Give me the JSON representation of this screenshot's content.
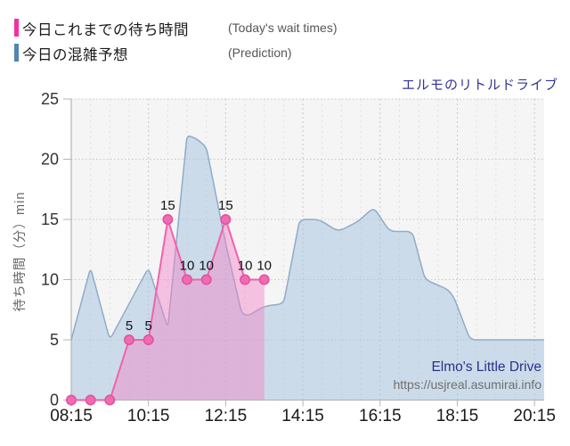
{
  "legend": {
    "items": [
      {
        "jp": "今日これまでの待ち時間",
        "en": "(Today's wait times)",
        "color": "#f5309d"
      },
      {
        "jp": "今日の混雑予想",
        "en": "(Prediction)",
        "color": "#4e86b5"
      }
    ]
  },
  "chart_title": "エルモのリトルドライブ",
  "footer": {
    "attraction_en": "Elmo's Little Drive",
    "url": "https://usjreal.asumirai.info"
  },
  "colors": {
    "title_navy": "#323397",
    "footer_navy": "#2c3188",
    "footer_gray": "#6f6f6f",
    "plot_bg": "#f5f5f6",
    "grid_major": "#c8c8c8",
    "grid_minor": "#dedede",
    "axis": "#b5b5b5",
    "tick_label": "#333333",
    "x_tick_label": "#191919",
    "point_label": "#111111"
  },
  "chart_data": {
    "type": "area",
    "title": "エルモのリトルドライブ",
    "xlabel": "",
    "ylabel": "待ち時間（分）min",
    "ylim": [
      0,
      25
    ],
    "y_ticks": [
      0,
      5,
      10,
      15,
      20,
      25
    ],
    "x_ticks": [
      "08:15",
      "10:15",
      "12:15",
      "14:15",
      "16:15",
      "18:15",
      "20:15"
    ],
    "x_domain": [
      "08:15",
      "20:30"
    ],
    "grid": "dotted",
    "legend_position": "top-left-outside",
    "series": [
      {
        "name": "今日の混雑予想",
        "name_en": "Prediction",
        "style": "area",
        "line_color": "#8fabc7",
        "fill_color": "rgba(164,193,219,0.50)",
        "show_labels": false,
        "points": [
          [
            "08:15",
            5
          ],
          [
            "08:45",
            11
          ],
          [
            "09:15",
            5
          ],
          [
            "09:45",
            8
          ],
          [
            "10:15",
            11
          ],
          [
            "10:45",
            6
          ],
          [
            "11:15",
            22
          ],
          [
            "11:30",
            21.7
          ],
          [
            "11:45",
            21
          ],
          [
            "12:15",
            13
          ],
          [
            "12:40",
            7.2
          ],
          [
            "12:50",
            7
          ],
          [
            "13:15",
            7.8
          ],
          [
            "13:45",
            8
          ],
          [
            "14:10",
            15
          ],
          [
            "14:40",
            15
          ],
          [
            "15:10",
            14
          ],
          [
            "15:40",
            14.8
          ],
          [
            "16:05",
            16
          ],
          [
            "16:30",
            14
          ],
          [
            "17:05",
            14
          ],
          [
            "17:25",
            10
          ],
          [
            "18:00",
            9.2
          ],
          [
            "18:10",
            8.5
          ],
          [
            "18:35",
            5
          ],
          [
            "20:30",
            5
          ]
        ]
      },
      {
        "name": "今日これまでの待ち時間",
        "name_en": "Today's wait times",
        "style": "area-markers",
        "line_color": "#f062ac",
        "fill_color": "rgba(243,130,199,0.45)",
        "marker_fill": "#ef6cb2",
        "marker_stroke": "#e2509f",
        "show_labels": true,
        "points": [
          [
            "08:15",
            0
          ],
          [
            "08:45",
            0
          ],
          [
            "09:15",
            0
          ],
          [
            "09:45",
            5
          ],
          [
            "10:15",
            5
          ],
          [
            "10:45",
            15
          ],
          [
            "11:15",
            10
          ],
          [
            "11:45",
            10
          ],
          [
            "12:15",
            15
          ],
          [
            "12:45",
            10
          ],
          [
            "13:15",
            10
          ]
        ]
      }
    ]
  }
}
